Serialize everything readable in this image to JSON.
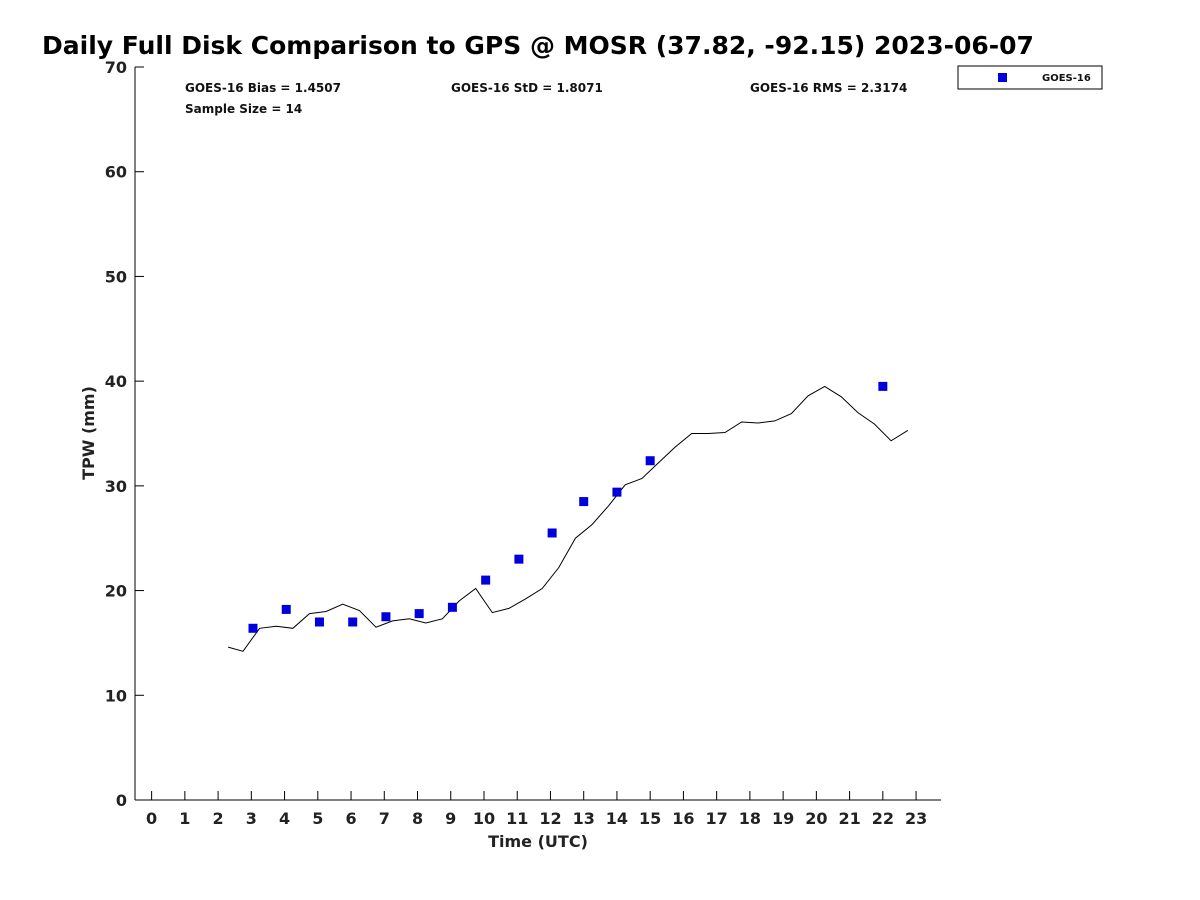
{
  "chart_data": {
    "type": "scatter",
    "title": "Daily Full Disk Comparison to GPS @ MOSR (37.82, -92.15) 2023-06-07",
    "xlabel": "Time (UTC)",
    "ylabel": "TPW (mm)",
    "xlim": [
      -0.5,
      23.75
    ],
    "ylim": [
      0,
      70
    ],
    "xticks": [
      0,
      1,
      2,
      3,
      4,
      5,
      6,
      7,
      8,
      9,
      10,
      11,
      12,
      13,
      14,
      15,
      16,
      17,
      18,
      19,
      20,
      21,
      22,
      23
    ],
    "yticks": [
      0,
      10,
      20,
      30,
      40,
      50,
      60,
      70
    ],
    "grid": false,
    "legend_position": "top-right outside",
    "stats": {
      "bias": "GOES-16 Bias = 1.4507",
      "std": "GOES-16 StD = 1.8071",
      "rms": "GOES-16 RMS = 2.3174",
      "sample": "Sample Size = 14"
    },
    "series": [
      {
        "name": "GOES-16",
        "kind": "scatter",
        "marker": "square",
        "color": "#0000dd",
        "x": [
          3.05,
          4.05,
          5.05,
          6.05,
          7.05,
          8.05,
          9.05,
          10.05,
          11.05,
          12.05,
          13.0,
          14.0,
          15.0,
          22.0
        ],
        "y": [
          16.4,
          18.2,
          17.0,
          17.0,
          17.5,
          17.8,
          18.4,
          21.0,
          23.0,
          25.5,
          28.5,
          29.4,
          32.4,
          39.5
        ]
      },
      {
        "name": "GPS",
        "kind": "line",
        "color": "#000000",
        "x": [
          2.3,
          2.75,
          3.25,
          3.75,
          4.25,
          4.75,
          5.25,
          5.75,
          6.25,
          6.75,
          7.25,
          7.75,
          8.25,
          8.75,
          9.25,
          9.75,
          10.25,
          10.75,
          11.25,
          11.75,
          12.25,
          12.75,
          13.25,
          13.75,
          14.25,
          14.75,
          15.25,
          15.75,
          16.25,
          16.75,
          17.25,
          17.75,
          18.25,
          18.75,
          19.25,
          19.75,
          20.25,
          20.75,
          21.25,
          21.75,
          22.25,
          22.75
        ],
        "y": [
          14.6,
          14.2,
          16.4,
          16.6,
          16.4,
          17.8,
          18.0,
          18.7,
          18.1,
          16.5,
          17.1,
          17.3,
          16.9,
          17.3,
          19.0,
          20.2,
          17.9,
          18.3,
          19.2,
          20.2,
          22.2,
          25.0,
          26.3,
          28.1,
          30.1,
          30.7,
          32.2,
          33.7,
          35.0,
          35.0,
          35.1,
          36.1,
          36.0,
          36.2,
          36.9,
          38.6,
          39.5,
          38.5,
          37.0,
          35.9,
          34.3,
          35.3
        ]
      }
    ]
  }
}
